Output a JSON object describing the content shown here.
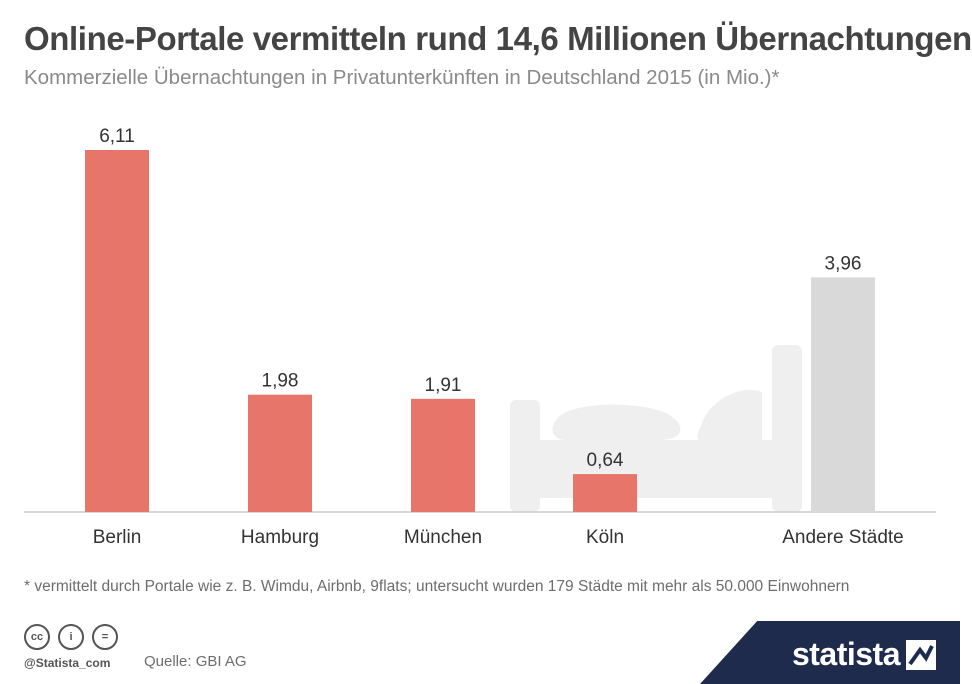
{
  "header": {
    "title": "Online-Portale vermitteln rund 14,6 Millionen Übernachtungen",
    "subtitle": "Kommerzielle Übernachtungen in Privatunterkünften in Deutschland 2015 (in Mio.)*"
  },
  "chart_data": {
    "type": "bar",
    "categories": [
      "Berlin",
      "Hamburg",
      "München",
      "Köln",
      "Andere Städte"
    ],
    "values": [
      6.11,
      1.98,
      1.91,
      0.64,
      3.96
    ],
    "value_labels": [
      "6,11",
      "1,98",
      "1,91",
      "0,64",
      "3,96"
    ],
    "bar_colors": [
      "#e8756a",
      "#e8756a",
      "#e8756a",
      "#e8756a",
      "#d9d9d9"
    ],
    "ylim": [
      0,
      6.11
    ],
    "grid": false,
    "background_icon": "bed-icon"
  },
  "footer": {
    "footnote": "* vermittelt durch Portale wie z. B. Wimdu, Airbnb, 9flats; untersucht wurden 179 Städte mit mehr als 50.000 Einwohnern",
    "cc_icons": [
      "cc",
      "i",
      "="
    ],
    "handle": "@Statista_com",
    "source": "Quelle: GBI AG",
    "brand": "statista",
    "brand_color": "#1e2b4d"
  }
}
